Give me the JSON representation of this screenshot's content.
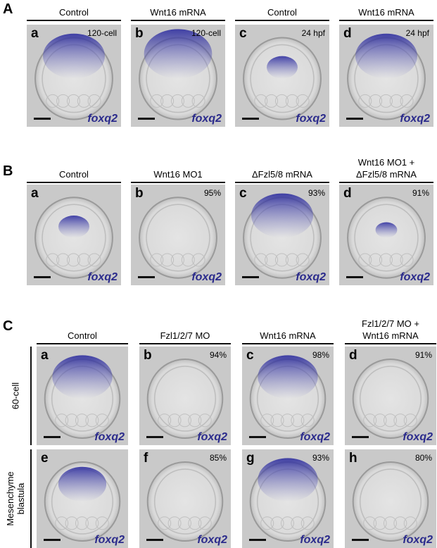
{
  "sections": [
    {
      "label": "A",
      "headers": [
        "Control",
        "Wnt16 mRNA",
        "Control",
        "Wnt16 mRNA"
      ],
      "panels": [
        {
          "letter": "a",
          "note": "120-cell",
          "gene": "foxq2"
        },
        {
          "letter": "b",
          "note": "120-cell",
          "gene": "foxq2"
        },
        {
          "letter": "c",
          "note": "24 hpf",
          "gene": "foxq2"
        },
        {
          "letter": "d",
          "note": "24 hpf",
          "gene": "foxq2"
        }
      ]
    },
    {
      "label": "B",
      "headers": [
        "Control",
        "Wnt16 MO1",
        "ΔFzl5/8 mRNA",
        "Wnt16 MO1 +\nΔFzl5/8 mRNA"
      ],
      "panels": [
        {
          "letter": "a",
          "gene": "foxq2"
        },
        {
          "letter": "b",
          "note": "95%",
          "gene": "foxq2"
        },
        {
          "letter": "c",
          "note": "93%",
          "gene": "foxq2"
        },
        {
          "letter": "d",
          "note": "91%",
          "gene": "foxq2"
        }
      ]
    },
    {
      "label": "C",
      "headers": [
        "Control",
        "Fzl1/2/7 MO",
        "Wnt16 mRNA",
        "Fzl1/2/7 MO +\nWnt16 mRNA"
      ],
      "row_labels": [
        "60-cell",
        "Mesenchyme\nblastula"
      ],
      "panels": [
        {
          "letter": "a",
          "gene": "foxq2"
        },
        {
          "letter": "b",
          "note": "94%",
          "gene": "foxq2"
        },
        {
          "letter": "c",
          "note": "98%",
          "gene": "foxq2"
        },
        {
          "letter": "d",
          "note": "91%",
          "gene": "foxq2"
        },
        {
          "letter": "e",
          "gene": "foxq2"
        },
        {
          "letter": "f",
          "note": "85%",
          "gene": "foxq2"
        },
        {
          "letter": "g",
          "note": "93%",
          "gene": "foxq2"
        },
        {
          "letter": "h",
          "note": "80%",
          "gene": "foxq2"
        }
      ]
    }
  ]
}
